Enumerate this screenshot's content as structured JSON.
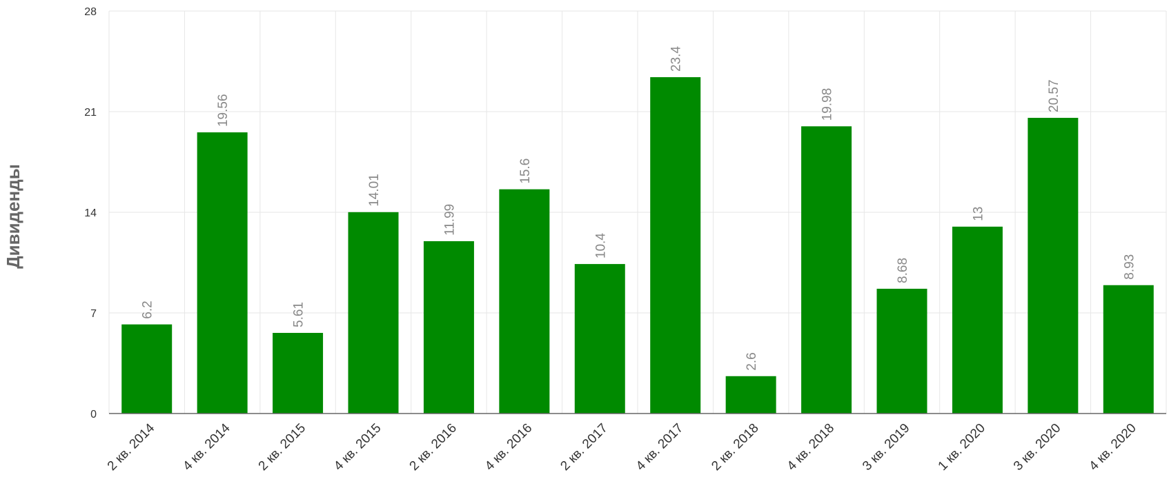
{
  "chart_data": {
    "type": "bar",
    "ylabel": "Дивиденды",
    "ylim": [
      0,
      28
    ],
    "yticks": [
      0,
      7,
      14,
      21,
      28
    ],
    "grid": true,
    "bar_color": "#008a00",
    "categories": [
      "2 кв. 2014",
      "4 кв. 2014",
      "2 кв. 2015",
      "4 кв. 2015",
      "2 кв. 2016",
      "4 кв. 2016",
      "2 кв. 2017",
      "4 кв. 2017",
      "2 кв. 2018",
      "4 кв. 2018",
      "3 кв. 2019",
      "1 кв. 2020",
      "3 кв. 2020",
      "4 кв. 2020"
    ],
    "values": [
      6.2,
      19.56,
      5.61,
      14.01,
      11.99,
      15.6,
      10.4,
      23.4,
      2.6,
      19.98,
      8.68,
      13,
      20.57,
      8.93
    ],
    "value_labels": [
      "6.2",
      "19.56",
      "5.61",
      "14.01",
      "11.99",
      "15.6",
      "10.4",
      "23.4",
      "2.6",
      "19.98",
      "8.68",
      "13",
      "20.57",
      "8.93"
    ]
  }
}
